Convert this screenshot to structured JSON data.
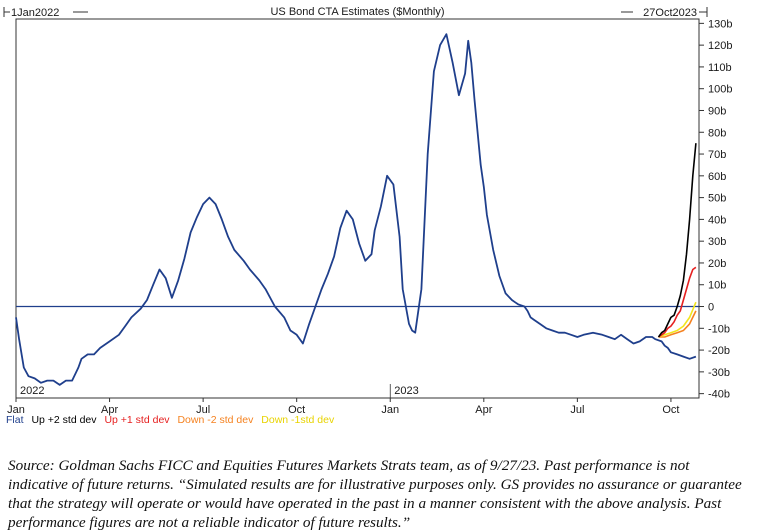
{
  "chart_data": {
    "type": "line",
    "title": "US Bond CTA Estimates ($Monthly)",
    "start_label": "1Jan2022",
    "end_label": "27Oct2023",
    "x_unit": "months since Jan 2022",
    "xlim": [
      0,
      21.9
    ],
    "ylim": [
      -42,
      132
    ],
    "y_ticks": [
      -40,
      -30,
      -20,
      -10,
      0,
      10,
      20,
      30,
      40,
      50,
      60,
      70,
      80,
      90,
      100,
      110,
      120,
      130
    ],
    "y_tick_labels": [
      "-40b",
      "-30b",
      "-20b",
      "-10b",
      "0",
      "10b",
      "20b",
      "30b",
      "40b",
      "50b",
      "60b",
      "70b",
      "80b",
      "90b",
      "100b",
      "110b",
      "120b",
      "130b"
    ],
    "x_ticks": [
      {
        "x": 0,
        "label": "Jan"
      },
      {
        "x": 3,
        "label": "Apr"
      },
      {
        "x": 6,
        "label": "Jul"
      },
      {
        "x": 9,
        "label": "Oct"
      },
      {
        "x": 12,
        "label": "Jan"
      },
      {
        "x": 15,
        "label": "Apr"
      },
      {
        "x": 18,
        "label": "Jul"
      },
      {
        "x": 21,
        "label": "Oct"
      }
    ],
    "year_labels": [
      {
        "x": 0,
        "label": "2022"
      },
      {
        "x": 12,
        "label": "2023"
      }
    ],
    "reference_line": 0,
    "series": [
      {
        "name": "Flat",
        "color": "#1f3f8c",
        "x": [
          0.0,
          0.1,
          0.25,
          0.4,
          0.6,
          0.8,
          1.0,
          1.2,
          1.4,
          1.6,
          1.8,
          2.0,
          2.1,
          2.3,
          2.5,
          2.7,
          3.0,
          3.3,
          3.5,
          3.7,
          4.0,
          4.2,
          4.4,
          4.6,
          4.8,
          5.0,
          5.2,
          5.4,
          5.6,
          5.8,
          6.0,
          6.2,
          6.4,
          6.6,
          6.8,
          7.0,
          7.3,
          7.5,
          7.8,
          8.0,
          8.3,
          8.6,
          8.8,
          9.0,
          9.2,
          9.4,
          9.6,
          9.8,
          10.0,
          10.2,
          10.4,
          10.6,
          10.8,
          11.0,
          11.2,
          11.4,
          11.5,
          11.7,
          11.9,
          12.1,
          12.3,
          12.4,
          12.6,
          12.7,
          12.8,
          13.0,
          13.2,
          13.4,
          13.6,
          13.8,
          14.0,
          14.2,
          14.4,
          14.5,
          14.6,
          14.7,
          14.8,
          14.9,
          15.0,
          15.1,
          15.3,
          15.5,
          15.7,
          15.9,
          16.0,
          16.1,
          16.3,
          16.4,
          16.5,
          16.6,
          16.8,
          17.0,
          17.2,
          17.4,
          17.6,
          17.8,
          18.0,
          18.2,
          18.5,
          18.8,
          19.0,
          19.2,
          19.4,
          19.6,
          19.8,
          20.0,
          20.2,
          20.4,
          20.5,
          20.7,
          20.8,
          20.9,
          21.0,
          21.2,
          21.4,
          21.6,
          21.8
        ],
        "y": [
          -5,
          -15,
          -28,
          -32,
          -33,
          -35,
          -34,
          -34,
          -36,
          -34,
          -34,
          -28,
          -24,
          -22,
          -22,
          -19,
          -16,
          -13,
          -9,
          -5,
          -1,
          3,
          10,
          17,
          13,
          4,
          12,
          22,
          34,
          41,
          47,
          50,
          47,
          40,
          32,
          26,
          21,
          17,
          12,
          8,
          0,
          -5,
          -11,
          -13,
          -17,
          -8,
          0,
          8,
          15,
          23,
          36,
          44,
          40,
          29,
          21,
          24,
          35,
          46,
          60,
          56,
          32,
          8,
          -8,
          -11,
          -12,
          8,
          70,
          108,
          120,
          125,
          112,
          97,
          107,
          122,
          112,
          95,
          80,
          65,
          55,
          42,
          26,
          14,
          6,
          3,
          2,
          1,
          0,
          -2,
          -5,
          -6,
          -8,
          -10,
          -11,
          -12,
          -12,
          -13,
          -14,
          -13,
          -12,
          -13,
          -14,
          -15,
          -13,
          -15,
          -17,
          -16,
          -14,
          -14,
          -15,
          -16,
          -18,
          -19,
          -21,
          -22,
          -23,
          -24,
          -23
        ]
      },
      {
        "name": "Up +2 std dev",
        "color": "#000000",
        "x": [
          20.6,
          20.7,
          20.8,
          20.9,
          21.0,
          21.1,
          21.2,
          21.3,
          21.4,
          21.5,
          21.6,
          21.7,
          21.8
        ],
        "y": [
          -14,
          -12,
          -11,
          -8,
          -5,
          -4,
          0,
          5,
          12,
          24,
          40,
          60,
          75
        ]
      },
      {
        "name": "Up +1 std dev",
        "color": "#e62020",
        "x": [
          20.6,
          20.7,
          20.8,
          20.9,
          21.0,
          21.1,
          21.2,
          21.3,
          21.4,
          21.5,
          21.6,
          21.7,
          21.8
        ],
        "y": [
          -14,
          -13,
          -12,
          -10,
          -9,
          -7,
          -4,
          -2,
          3,
          8,
          13,
          17,
          18
        ]
      },
      {
        "name": "Down -2 std dev",
        "color": "#f58220",
        "x": [
          20.6,
          20.8,
          21.0,
          21.2,
          21.4,
          21.6,
          21.8
        ],
        "y": [
          -14,
          -14,
          -13,
          -12,
          -11,
          -8,
          -2
        ]
      },
      {
        "name": "Down -1std dev",
        "color": "#f2e51d",
        "x": [
          20.6,
          20.8,
          21.0,
          21.2,
          21.4,
          21.6,
          21.8
        ],
        "y": [
          -14,
          -13,
          -12,
          -11,
          -9,
          -5,
          2
        ]
      }
    ]
  },
  "legend": [
    {
      "label": "Flat",
      "color": "#1f3f8c"
    },
    {
      "label": "Up +2 std dev",
      "color": "#000000"
    },
    {
      "label": "Up +1 std dev",
      "color": "#e62020"
    },
    {
      "label": "Down -2 std dev",
      "color": "#f58220"
    },
    {
      "label": "Down -1std dev",
      "color": "#e8d300"
    }
  ],
  "caption": "Source: Goldman Sachs FICC and Equities Futures Markets Strats team, as of 9/27/23. Past performance is not indicative of future returns. “Simulated results are for illustrative purposes only. GS provides no assurance or guarantee that the strategy will operate or would have operated in the past in a manner consistent with the above analysis. Past performance figures are not a reliable indicator of future results.”"
}
